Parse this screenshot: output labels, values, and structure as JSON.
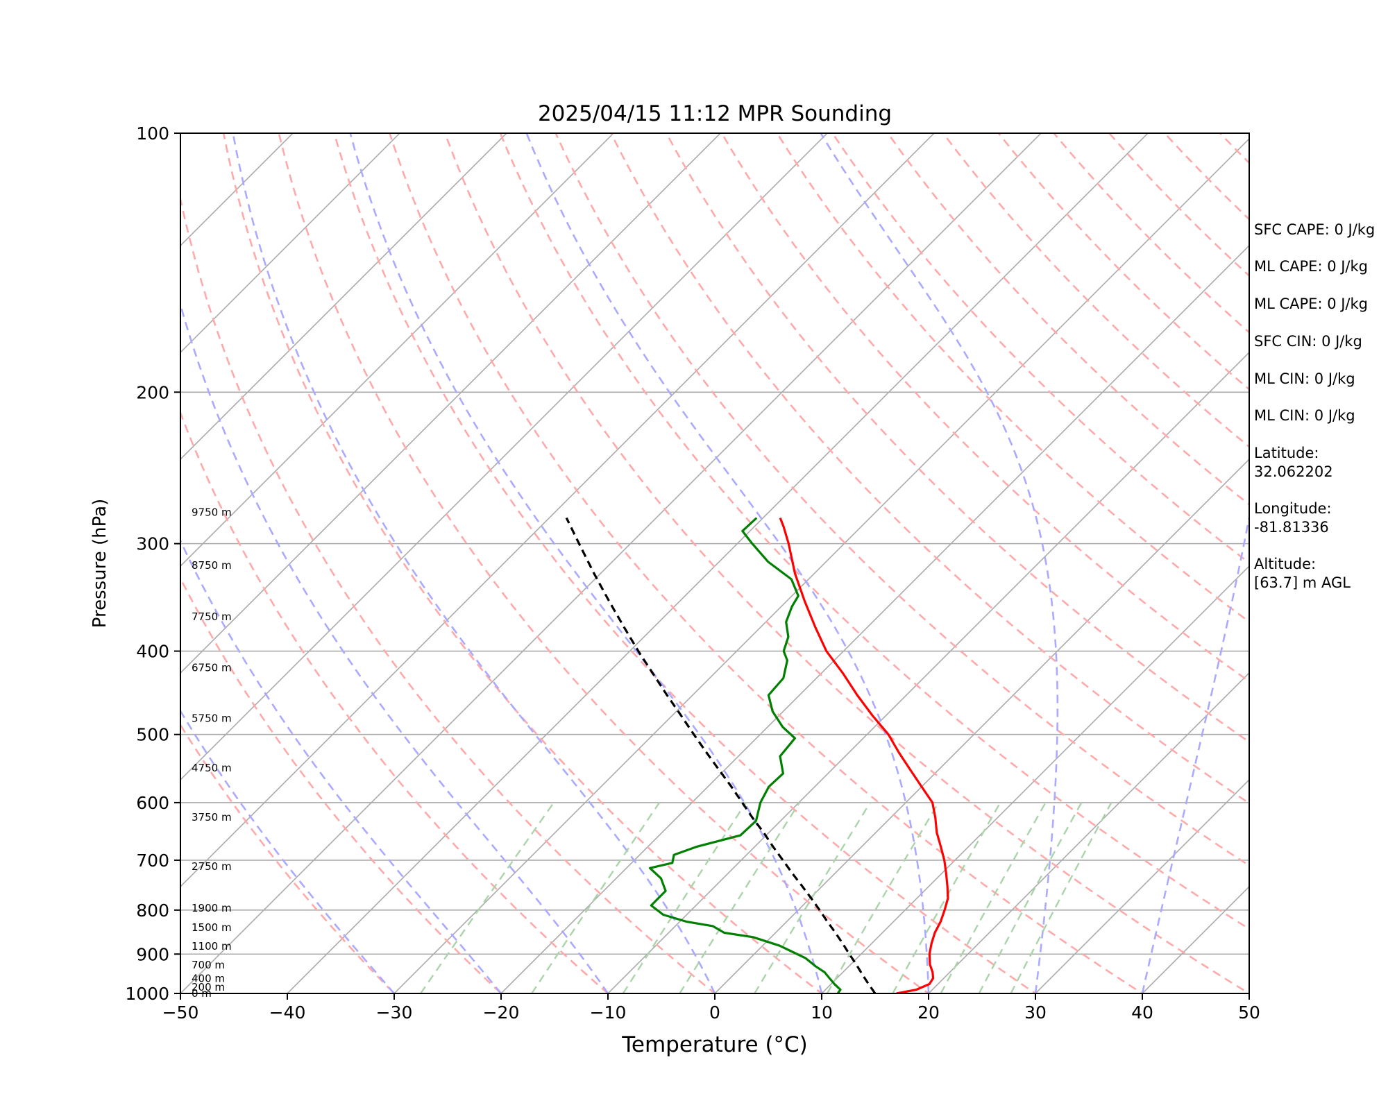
{
  "chart_data": {
    "type": "line",
    "title": "2025/04/15 11:12 MPR Sounding",
    "xlabel": "Temperature (°C)",
    "ylabel": "Pressure (hPa)",
    "xlim": [
      -50,
      50
    ],
    "ylim": [
      1000,
      100
    ],
    "y_scale": "log",
    "grid": true,
    "x_ticks": [
      -50,
      -40,
      -30,
      -20,
      -10,
      0,
      10,
      20,
      30,
      40,
      50
    ],
    "y_ticks": [
      100,
      200,
      300,
      400,
      500,
      600,
      700,
      800,
      900,
      1000
    ],
    "x_tick_labels": [
      "−50",
      "−40",
      "−30",
      "−20",
      "−10",
      "0",
      "10",
      "20",
      "30",
      "40",
      "50"
    ],
    "y_tick_labels": [
      "100",
      "200",
      "300",
      "400",
      "500",
      "600",
      "700",
      "800",
      "900",
      "1000"
    ],
    "series": [
      {
        "color": "#ff0000",
        "p": [
          1000,
          990,
          975,
          960,
          945,
          925,
          900,
          875,
          850,
          825,
          800,
          775,
          750,
          725,
          700,
          675,
          650,
          625,
          600,
          575,
          550,
          525,
          500,
          475,
          450,
          425,
          400,
          375,
          350,
          325,
          300,
          287,
          280
        ],
        "t": [
          17.0,
          18.5,
          19.2,
          19.0,
          18.4,
          17.4,
          16.4,
          15.6,
          14.9,
          14.4,
          13.7,
          12.9,
          11.7,
          10.4,
          9.0,
          7.4,
          5.7,
          4.2,
          2.5,
          0.0,
          -2.6,
          -5.3,
          -8.0,
          -11.3,
          -14.6,
          -17.9,
          -21.6,
          -24.9,
          -28.3,
          -31.8,
          -35.2,
          -37.2,
          -38.4
        ]
      },
      {
        "color": "#008000",
        "p": [
          1000,
          990,
          975,
          960,
          945,
          930,
          910,
          880,
          860,
          850,
          835,
          825,
          810,
          790,
          775,
          760,
          735,
          715,
          705,
          690,
          675,
          655,
          630,
          600,
          575,
          555,
          530,
          505,
          490,
          470,
          450,
          430,
          410,
          400,
          385,
          370,
          355,
          345,
          330,
          315,
          300,
          290,
          280
        ],
        "td": [
          11.5,
          11.4,
          10.3,
          9.3,
          8.3,
          6.9,
          5.2,
          1.6,
          -1.7,
          -4.8,
          -6.5,
          -9.4,
          -12.2,
          -14.2,
          -14.2,
          -14.2,
          -15.8,
          -17.8,
          -16.2,
          -16.8,
          -15.4,
          -12.4,
          -12.3,
          -13.6,
          -14.3,
          -14.2,
          -16.1,
          -16.4,
          -18.6,
          -21.0,
          -22.9,
          -23.1,
          -24.4,
          -25.6,
          -26.5,
          -28.1,
          -29.0,
          -29.4,
          -31.6,
          -35.4,
          -38.6,
          -40.7,
          -40.6
        ]
      },
      {
        "color": "#000000",
        "style": "dashed",
        "p": [
          1000,
          975,
          950,
          925,
          900,
          875,
          850,
          825,
          800,
          775,
          750,
          725,
          700,
          675,
          650,
          625,
          600,
          575,
          550,
          525,
          500,
          475,
          450,
          425,
          400,
          375,
          350,
          325,
          300,
          280
        ],
        "t": [
          15.0,
          13.5,
          12.0,
          10.5,
          8.9,
          7.3,
          5.6,
          3.8,
          2.0,
          0.1,
          -1.9,
          -4.0,
          -6.1,
          -8.3,
          -10.5,
          -12.9,
          -15.3,
          -17.8,
          -20.5,
          -23.3,
          -26.2,
          -29.2,
          -32.4,
          -35.7,
          -39.2,
          -42.8,
          -46.6,
          -50.6,
          -54.8,
          -58.4
        ]
      }
    ],
    "height_labels": [
      {
        "label": "0 m",
        "p": 1000
      },
      {
        "label": "200 m",
        "p": 983
      },
      {
        "label": "400 m",
        "p": 961
      },
      {
        "label": "700 m",
        "p": 927
      },
      {
        "label": "1100 m",
        "p": 881
      },
      {
        "label": "1500 m",
        "p": 838
      },
      {
        "label": "1900 m",
        "p": 796
      },
      {
        "label": "2750 m",
        "p": 712
      },
      {
        "label": "3750 m",
        "p": 624
      },
      {
        "label": "4750 m",
        "p": 547
      },
      {
        "label": "5750 m",
        "p": 479
      },
      {
        "label": "6750 m",
        "p": 418
      },
      {
        "label": "7750 m",
        "p": 365
      },
      {
        "label": "8750 m",
        "p": 318
      },
      {
        "label": "9750 m",
        "p": 276
      }
    ],
    "background_lines": {
      "isotherms": {
        "color": "#aaaaaa",
        "t_start": -120,
        "t_end": 50,
        "step": 10
      },
      "dry_adiabats": {
        "color": "#ffaaaa",
        "theta_start": -30,
        "theta_end": 200,
        "step": 10
      },
      "moist_adiabats": {
        "color": "#aaaaff",
        "t_start": -30,
        "t_end": 50,
        "step": 10
      },
      "mixing_ratio": {
        "color": "#aad4aa",
        "values": [
          0.4,
          1,
          2,
          3,
          5,
          8,
          12,
          16,
          20,
          24
        ],
        "p_top": 600
      }
    }
  },
  "info_panel": [
    {
      "key": "sfc_cape",
      "text": "SFC CAPE: 0 J/kg"
    },
    {
      "key": "ml_cape_1",
      "text": "ML CAPE: 0 J/kg"
    },
    {
      "key": "ml_cape_2",
      "text": "ML CAPE: 0 J/kg"
    },
    {
      "key": "sfc_cin",
      "text": "SFC CIN: 0 J/kg"
    },
    {
      "key": "ml_cin_1",
      "text": "ML CIN: 0 J/kg"
    },
    {
      "key": "ml_cin_2",
      "text": "ML CIN: 0 J/kg"
    },
    {
      "key": "latitude_label",
      "text": "Latitude:"
    },
    {
      "key": "latitude_value",
      "text": "32.062202"
    },
    {
      "key": "longitude_label",
      "text": "Longitude:"
    },
    {
      "key": "longitude_value",
      "text": "-81.81336"
    },
    {
      "key": "altitude_label",
      "text": "Altitude:"
    },
    {
      "key": "altitude_value",
      "text": "[63.7] m AGL"
    }
  ]
}
